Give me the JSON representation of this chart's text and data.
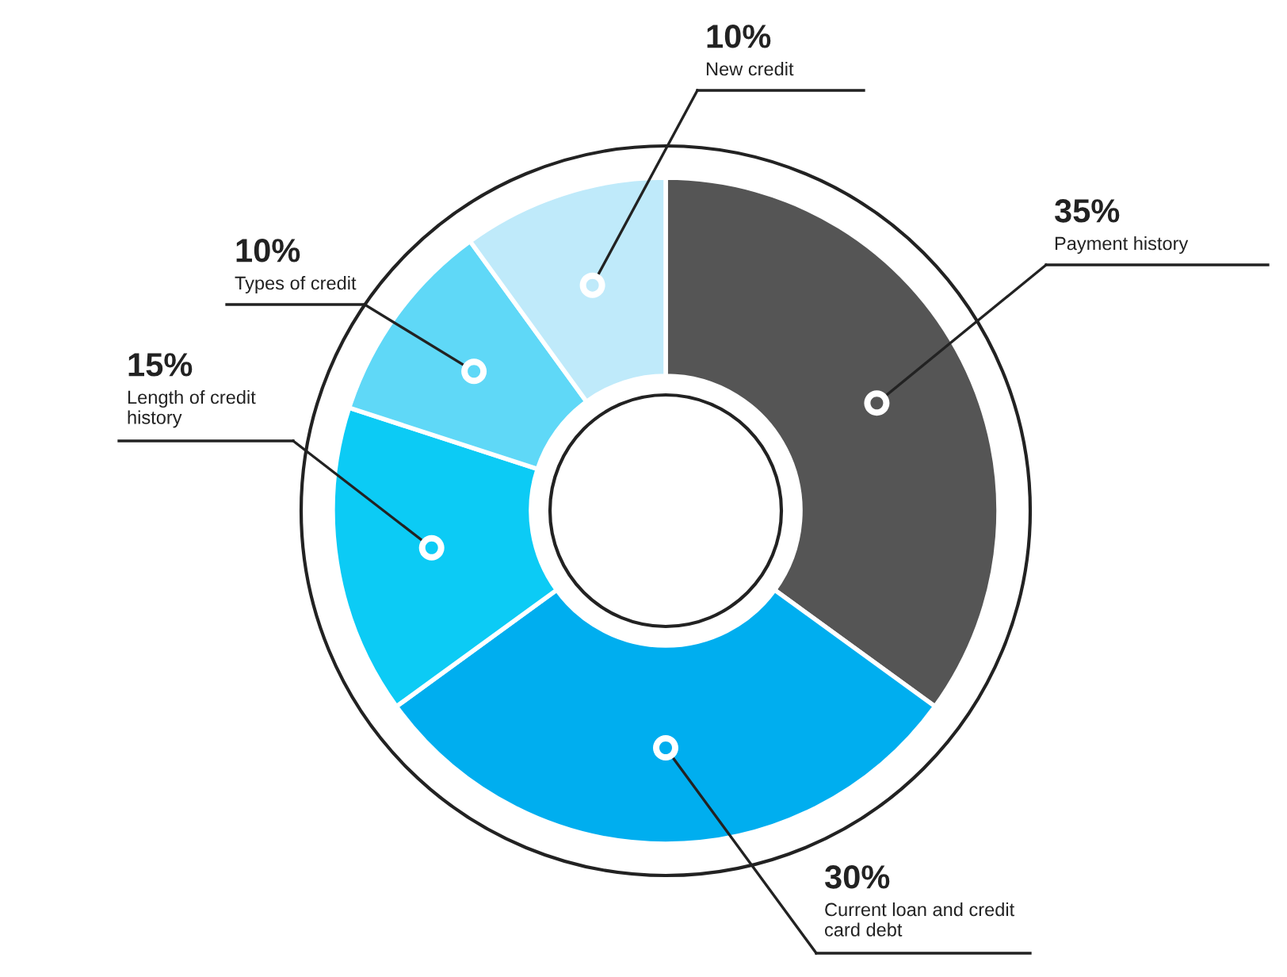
{
  "chart_data": {
    "type": "donut",
    "categories": [
      "Payment history",
      "Current loan and credit card debt",
      "Length of credit history",
      "Types of credit",
      "New credit"
    ],
    "values": [
      35,
      30,
      15,
      10,
      10
    ],
    "value_labels": [
      "35%",
      "30%",
      "15%",
      "10%",
      "10%"
    ],
    "colors": [
      "#555555",
      "#00aeef",
      "#0ccbf5",
      "#5fd8f7",
      "#bfeafa"
    ],
    "legend": false
  }
}
